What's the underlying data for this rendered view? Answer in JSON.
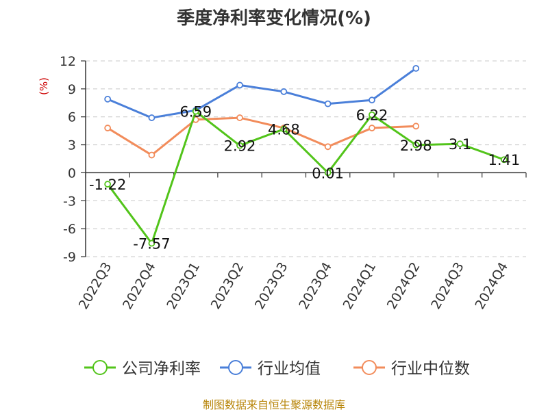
{
  "chart_data": {
    "type": "line",
    "title": "季度净利率变化情况(%)",
    "ylabel": "(%)",
    "categories": [
      "2022Q3",
      "2022Q4",
      "2023Q1",
      "2023Q2",
      "2023Q3",
      "2023Q4",
      "2024Q1",
      "2024Q2",
      "2024Q3",
      "2024Q4"
    ],
    "y_ticks": [
      "12",
      "9",
      "6",
      "3",
      "0",
      "-3",
      "-6",
      "-9"
    ],
    "ylim": [
      -9,
      12
    ],
    "grid": true,
    "legend_position": "bottom",
    "series": [
      {
        "name": "公司净利率",
        "color": "#52c41a",
        "values": [
          -1.22,
          -7.57,
          6.59,
          2.92,
          4.68,
          0.01,
          6.22,
          2.98,
          3.1,
          1.41
        ],
        "labels": [
          "-1.22",
          "-7.57",
          "6.59",
          "2.92",
          "4.68",
          "0.01",
          "6.22",
          "2.98",
          "3.1",
          "1.41"
        ]
      },
      {
        "name": "行业均值",
        "color": "#4a7fd9",
        "values": [
          7.9,
          5.9,
          6.7,
          9.4,
          8.7,
          7.4,
          7.8,
          11.2,
          null,
          null
        ]
      },
      {
        "name": "行业中位数",
        "color": "#f28c5b",
        "values": [
          4.8,
          1.9,
          5.7,
          5.9,
          4.8,
          2.8,
          4.8,
          5.0,
          null,
          null
        ]
      }
    ]
  },
  "source": "制图数据来自恒生聚源数据库"
}
